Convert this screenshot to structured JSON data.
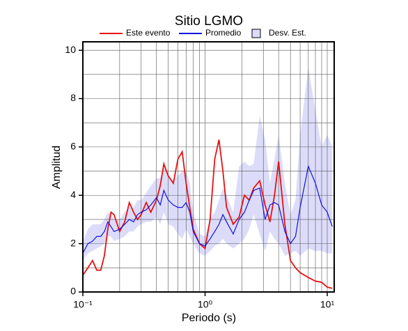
{
  "chart_data": {
    "type": "line",
    "title": "Sitio LGMO",
    "xlabel": "Periodo (s)",
    "ylabel": "Amplitud",
    "xscale": "log",
    "xlim": [
      0.1,
      11.4
    ],
    "ylim": [
      0,
      10.35
    ],
    "xticks": [
      {
        "value": 0.1,
        "label": "10⁻¹"
      },
      {
        "value": 1,
        "label": "10⁰"
      },
      {
        "value": 10,
        "label": "10¹"
      }
    ],
    "x_minor_ticks": [
      0.2,
      0.3,
      0.4,
      0.5,
      0.6,
      0.7,
      0.8,
      0.9,
      2,
      3,
      4,
      5,
      6,
      7,
      8,
      9
    ],
    "yticks": [
      0,
      2,
      4,
      6,
      8,
      10
    ],
    "y_minor_ticks": [
      1,
      3,
      5,
      7,
      9
    ],
    "grid": true,
    "legend": "top",
    "x": [
      0.1,
      0.11,
      0.12,
      0.13,
      0.14,
      0.15,
      0.16,
      0.17,
      0.18,
      0.2,
      0.22,
      0.24,
      0.26,
      0.28,
      0.3,
      0.33,
      0.36,
      0.4,
      0.43,
      0.46,
      0.5,
      0.55,
      0.6,
      0.65,
      0.7,
      0.75,
      0.8,
      0.9,
      1.0,
      1.1,
      1.2,
      1.3,
      1.4,
      1.5,
      1.7,
      1.9,
      2.1,
      2.3,
      2.5,
      2.8,
      3.1,
      3.4,
      3.7,
      4.0,
      4.5,
      5,
      5.5,
      6,
      7,
      8,
      9,
      10,
      11
    ],
    "series": [
      {
        "name": "Este evento",
        "color": "#e81010",
        "values": [
          0.7,
          1.0,
          1.3,
          0.9,
          0.9,
          1.5,
          2.6,
          3.3,
          3.2,
          2.5,
          2.9,
          3.7,
          3.3,
          3.0,
          3.2,
          3.7,
          3.3,
          3.8,
          4.4,
          5.3,
          4.8,
          4.5,
          5.5,
          5.8,
          4.5,
          3.5,
          2.6,
          2.0,
          1.8,
          3.0,
          5.5,
          6.3,
          5.0,
          3.5,
          2.8,
          3.1,
          4.0,
          3.8,
          4.3,
          4.6,
          3.6,
          2.9,
          4.0,
          5.4,
          2.8,
          1.3,
          1.0,
          0.8,
          0.6,
          0.45,
          0.4,
          0.2,
          0.15
        ]
      },
      {
        "name": "Promedio",
        "color": "#1010e0",
        "values": [
          1.6,
          2.0,
          2.1,
          2.3,
          2.3,
          2.5,
          2.9,
          2.7,
          2.5,
          2.6,
          2.8,
          3.0,
          2.9,
          3.2,
          3.3,
          3.4,
          3.6,
          3.9,
          3.6,
          4.2,
          3.8,
          3.6,
          3.5,
          3.5,
          3.7,
          3.3,
          2.5,
          2.0,
          1.9,
          2.2,
          2.5,
          2.8,
          3.2,
          2.9,
          2.4,
          3.0,
          3.3,
          3.8,
          4.2,
          4.3,
          3.0,
          3.6,
          3.7,
          3.6,
          2.5,
          2.0,
          2.3,
          3.5,
          5.2,
          4.5,
          3.6,
          3.3,
          2.7
        ]
      }
    ],
    "band": {
      "name": "Desv. Est.",
      "color": "#dcdcfa",
      "upper": [
        2.1,
        2.6,
        2.8,
        2.8,
        2.8,
        3.0,
        3.3,
        3.2,
        3.0,
        3.0,
        3.3,
        3.5,
        3.5,
        3.8,
        3.8,
        4.1,
        4.4,
        4.7,
        4.7,
        5.2,
        4.8,
        4.6,
        4.8,
        5.0,
        5.0,
        4.5,
        3.3,
        2.4,
        2.3,
        3.0,
        3.3,
        3.8,
        4.3,
        4.0,
        3.3,
        5.2,
        5.4,
        5.2,
        5.3,
        7.3,
        6.3,
        4.5,
        5.5,
        6.5,
        4.5,
        3.2,
        3.8,
        6.5,
        9.3,
        7.5,
        6.0,
        6.5,
        6.0
      ],
      "lower": [
        1.3,
        1.6,
        1.7,
        1.8,
        1.9,
        2.0,
        2.3,
        2.3,
        2.1,
        2.2,
        2.3,
        2.5,
        2.5,
        2.7,
        2.8,
        2.9,
        2.9,
        3.1,
        2.8,
        3.3,
        2.8,
        2.7,
        2.4,
        2.2,
        2.6,
        2.3,
        2.0,
        1.6,
        1.5,
        1.7,
        1.9,
        2.0,
        2.2,
        2.0,
        1.8,
        2.0,
        2.2,
        2.6,
        3.2,
        2.4,
        1.7,
        2.5,
        2.2,
        2.0,
        1.5,
        1.6,
        1.7,
        1.5,
        1.8,
        1.7,
        1.7,
        1.6,
        1.6
      ]
    }
  }
}
